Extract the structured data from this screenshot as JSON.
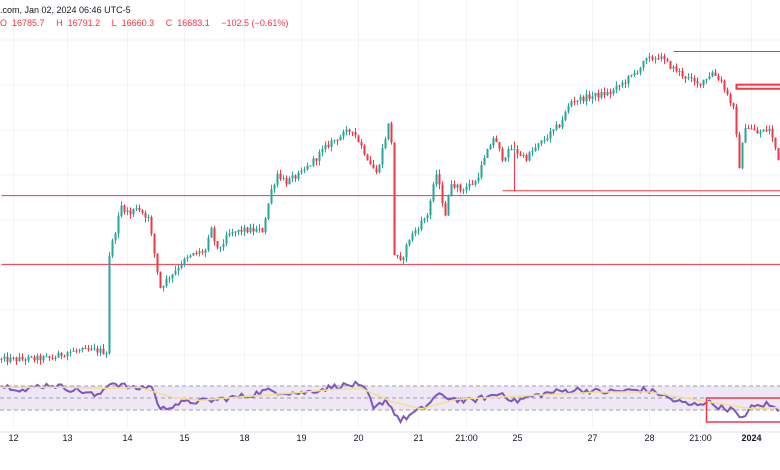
{
  "header": {
    "source": ".com, Jan 02, 2024 06:46 UTC-5",
    "ohlc": {
      "open_label": "O",
      "open": "16785.7",
      "high_label": "H",
      "high": "16791.2",
      "low_label": "L",
      "low": "16660.3",
      "close_label": "C",
      "close": "16683.1",
      "change": "−102.5 (−0.61%)"
    }
  },
  "colors": {
    "up": "#26a69a",
    "down": "#f23645",
    "level_line": "#f23645",
    "rsi_line": "#7e57c2",
    "rsi_ma": "#f5e08a",
    "rsi_band_fill": "#ede7f6",
    "grid": "#f0f3fa",
    "axis_text": "#131722"
  },
  "chart_data": [
    {
      "type": "candlestick",
      "title": "",
      "y_range": [
        16460,
        16880
      ],
      "x_range": [
        0,
        260
      ],
      "x_ticks": [
        {
          "x": 4,
          "label": "12"
        },
        {
          "x": 22,
          "label": "13"
        },
        {
          "x": 42,
          "label": "14"
        },
        {
          "x": 61,
          "label": "15"
        },
        {
          "x": 81,
          "label": "18"
        },
        {
          "x": 100,
          "label": "19"
        },
        {
          "x": 119,
          "label": "20"
        },
        {
          "x": 139,
          "label": "21"
        },
        {
          "x": 155,
          "label": "21:00"
        },
        {
          "x": 172,
          "label": "25"
        },
        {
          "x": 197,
          "label": "27"
        },
        {
          "x": 216,
          "label": "28"
        },
        {
          "x": 233,
          "label": "21:00"
        },
        {
          "x": 250,
          "label": "2024"
        }
      ],
      "anchors": [
        [
          0,
          16470
        ],
        [
          17,
          16472
        ],
        [
          22,
          16480
        ],
        [
          31,
          16482
        ],
        [
          35,
          16480
        ],
        [
          36,
          16600
        ],
        [
          40,
          16660
        ],
        [
          43,
          16650
        ],
        [
          45,
          16660
        ],
        [
          49,
          16645
        ],
        [
          52,
          16580
        ],
        [
          53,
          16560
        ],
        [
          60,
          16590
        ],
        [
          64,
          16600
        ],
        [
          68,
          16605
        ],
        [
          70,
          16630
        ],
        [
          72,
          16605
        ],
        [
          76,
          16625
        ],
        [
          80,
          16630
        ],
        [
          87,
          16630
        ],
        [
          90,
          16680
        ],
        [
          92,
          16700
        ],
        [
          95,
          16690
        ],
        [
          100,
          16700
        ],
        [
          105,
          16720
        ],
        [
          110,
          16740
        ],
        [
          117,
          16755
        ],
        [
          122,
          16720
        ],
        [
          125,
          16700
        ],
        [
          129,
          16760
        ],
        [
          130,
          16740
        ],
        [
          131,
          16600
        ],
        [
          133,
          16590
        ],
        [
          136,
          16620
        ],
        [
          142,
          16650
        ],
        [
          145,
          16700
        ],
        [
          148,
          16650
        ],
        [
          150,
          16690
        ],
        [
          153,
          16680
        ],
        [
          158,
          16690
        ],
        [
          164,
          16745
        ],
        [
          167,
          16720
        ],
        [
          170,
          16730
        ],
        [
          175,
          16720
        ],
        [
          179,
          16735
        ],
        [
          186,
          16760
        ],
        [
          190,
          16790
        ],
        [
          196,
          16795
        ],
        [
          203,
          16800
        ],
        [
          210,
          16820
        ],
        [
          215,
          16840
        ],
        [
          219,
          16845
        ],
        [
          224,
          16830
        ],
        [
          228,
          16820
        ],
        [
          232,
          16810
        ],
        [
          237,
          16825
        ],
        [
          240,
          16815
        ],
        [
          244,
          16780
        ],
        [
          246,
          16710
        ],
        [
          248,
          16760
        ],
        [
          252,
          16750
        ],
        [
          256,
          16755
        ],
        [
          259,
          16720
        ]
      ],
      "ohlc_last": {
        "open": 16785.7,
        "high": 16791.2,
        "low": 16660.3,
        "close": 16683.1
      },
      "horizontal_levels": [
        {
          "y": 16588,
          "x_start": 0,
          "x_end": 260
        },
        {
          "y": 16673,
          "x_start": 0,
          "x_end": 260
        },
        {
          "y": 16679,
          "x_start": 167,
          "x_end": 260
        },
        {
          "y": 16851,
          "x_start": 224,
          "x_end": 260
        }
      ],
      "zones": [
        {
          "x_start": 245,
          "x_end": 260,
          "y_low": 16805,
          "y_high": 16810
        }
      ],
      "vertical_markers": [
        {
          "x": 171,
          "y_low": 16678,
          "y_high": 16740
        }
      ]
    },
    {
      "type": "line",
      "title": "",
      "y_range": [
        0,
        100
      ],
      "band": [
        30,
        70
      ],
      "mid": 50,
      "series": [
        {
          "key": "rsi",
          "anchors": [
            [
              0,
              70
            ],
            [
              4,
              68
            ],
            [
              8,
              62
            ],
            [
              12,
              70
            ],
            [
              17,
              72
            ],
            [
              22,
              66
            ],
            [
              28,
              60
            ],
            [
              32,
              52
            ],
            [
              36,
              76
            ],
            [
              40,
              72
            ],
            [
              44,
              65
            ],
            [
              50,
              70
            ],
            [
              53,
              30
            ],
            [
              58,
              40
            ],
            [
              64,
              44
            ],
            [
              70,
              46
            ],
            [
              76,
              50
            ],
            [
              82,
              54
            ],
            [
              88,
              62
            ],
            [
              94,
              60
            ],
            [
              100,
              58
            ],
            [
              106,
              64
            ],
            [
              112,
              70
            ],
            [
              118,
              72
            ],
            [
              122,
              60
            ],
            [
              124,
              30
            ],
            [
              128,
              48
            ],
            [
              133,
              12
            ],
            [
              137,
              24
            ],
            [
              141,
              34
            ],
            [
              145,
              54
            ],
            [
              150,
              50
            ],
            [
              155,
              44
            ],
            [
              162,
              52
            ],
            [
              167,
              58
            ],
            [
              171,
              44
            ],
            [
              176,
              52
            ],
            [
              184,
              60
            ],
            [
              192,
              64
            ],
            [
              200,
              60
            ],
            [
              208,
              62
            ],
            [
              214,
              64
            ],
            [
              219,
              58
            ],
            [
              224,
              46
            ],
            [
              230,
              38
            ],
            [
              235,
              44
            ],
            [
              240,
              34
            ],
            [
              244,
              30
            ],
            [
              246,
              14
            ],
            [
              250,
              34
            ],
            [
              255,
              40
            ],
            [
              259,
              30
            ]
          ]
        },
        {
          "key": "rsi_ma",
          "anchors": [
            [
              0,
              68
            ],
            [
              20,
              68
            ],
            [
              36,
              66
            ],
            [
              46,
              68
            ],
            [
              56,
              52
            ],
            [
              66,
              46
            ],
            [
              80,
              52
            ],
            [
              96,
              58
            ],
            [
              110,
              64
            ],
            [
              120,
              66
            ],
            [
              130,
              44
            ],
            [
              140,
              32
            ],
            [
              152,
              48
            ],
            [
              168,
              52
            ],
            [
              184,
              56
            ],
            [
              200,
              60
            ],
            [
              216,
              60
            ],
            [
              228,
              50
            ],
            [
              240,
              40
            ],
            [
              250,
              32
            ],
            [
              259,
              34
            ]
          ]
        }
      ],
      "highlight_box": {
        "x_start": 235,
        "x_end": 260,
        "y_low": 10,
        "y_high": 50
      }
    }
  ]
}
